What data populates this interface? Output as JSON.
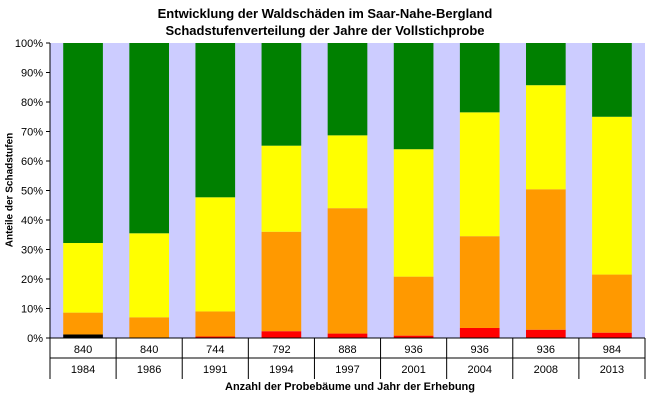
{
  "chart_data": {
    "type": "bar",
    "stacked": true,
    "title": "Entwicklung  der Waldschäden im Saar-Nahe-Bergland",
    "subtitle": "Schadstufenverteilung der Jahre der Vollstichprobe",
    "ylabel": "Anteile der Schadstufen",
    "xlabel": "Anzahl der Probebäume und Jahr der Erhebung",
    "ylim": [
      0,
      100
    ],
    "yticks": [
      "0%",
      "10%",
      "20%",
      "30%",
      "40%",
      "50%",
      "60%",
      "70%",
      "80%",
      "90%",
      "100%"
    ],
    "categories": [
      "1984",
      "1986",
      "1991",
      "1994",
      "1997",
      "2001",
      "2004",
      "2008",
      "2013"
    ],
    "sample_counts": [
      "840",
      "840",
      "744",
      "792",
      "888",
      "936",
      "936",
      "936",
      "984"
    ],
    "grid": false,
    "plot_background": "#ccccff",
    "series": [
      {
        "color": "#000000",
        "values": [
          1.2,
          0,
          0,
          0,
          0,
          0,
          0,
          0,
          0
        ]
      },
      {
        "color": "#ff0000",
        "values": [
          0,
          0,
          0.5,
          2.3,
          1.5,
          0.8,
          3.4,
          2.8,
          1.8
        ]
      },
      {
        "color": "#ff9900",
        "values": [
          7.4,
          7,
          8.5,
          33.7,
          42.5,
          20,
          31.1,
          47.6,
          19.7
        ]
      },
      {
        "color": "#ffff00",
        "values": [
          23.6,
          28.5,
          38.7,
          29.2,
          24.7,
          43.2,
          42,
          35.3,
          53.5
        ]
      },
      {
        "color": "#008000",
        "values": [
          67.8,
          64.5,
          52.3,
          34.8,
          31.3,
          36,
          23.5,
          14.3,
          25
        ]
      }
    ]
  }
}
